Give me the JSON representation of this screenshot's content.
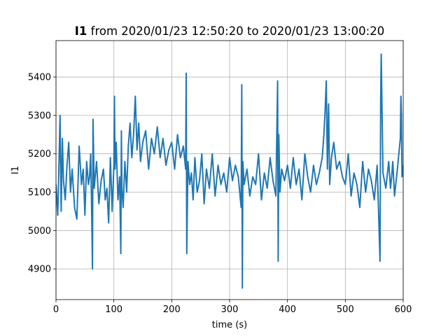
{
  "chart_data": {
    "type": "line",
    "title_bold": "I1",
    "title_rest": " from 2020/01/23 12:50:20 to 2020/01/23 13:00:20",
    "xlabel": "time (s)",
    "ylabel": "I1",
    "xlim": [
      0,
      600
    ],
    "ylim": [
      4820,
      5495
    ],
    "xticks": [
      0,
      100,
      200,
      300,
      400,
      500,
      600
    ],
    "yticks": [
      4900,
      5000,
      5100,
      5200,
      5300,
      5400
    ],
    "grid": true,
    "line_color": "#1f77b4",
    "series": [
      {
        "x": [
          0,
          3,
          5,
          7,
          9,
          11,
          13,
          16,
          19,
          22,
          25,
          28,
          32,
          36,
          40,
          44,
          47,
          50,
          53,
          56,
          58,
          60,
          62,
          63,
          64,
          66,
          70,
          74,
          78,
          82,
          85,
          88,
          91,
          94,
          97,
          100,
          101,
          102,
          104,
          107,
          110,
          112,
          113,
          114,
          116,
          119,
          122,
          125,
          128,
          131,
          134,
          137,
          140,
          143,
          146,
          150,
          155,
          160,
          165,
          170,
          175,
          180,
          185,
          190,
          195,
          200,
          205,
          210,
          215,
          220,
          224,
          225,
          226,
          228,
          231,
          234,
          237,
          240,
          244,
          248,
          252,
          256,
          260,
          265,
          270,
          275,
          280,
          285,
          290,
          295,
          300,
          305,
          310,
          315,
          320,
          321,
          322,
          323,
          325,
          330,
          335,
          340,
          345,
          350,
          355,
          360,
          365,
          370,
          375,
          380,
          383,
          384,
          385,
          387,
          390,
          395,
          400,
          405,
          410,
          415,
          420,
          425,
          430,
          435,
          440,
          445,
          450,
          455,
          460,
          463,
          465,
          467,
          469,
          471,
          473,
          476,
          480,
          485,
          490,
          495,
          500,
          505,
          510,
          515,
          520,
          525,
          530,
          535,
          540,
          545,
          550,
          555,
          560,
          561,
          562,
          565,
          570,
          575,
          578,
          580,
          582,
          585,
          590,
          595,
          596,
          597,
          598,
          600
        ],
        "y": [
          5120,
          5040,
          5160,
          5300,
          5050,
          5240,
          5130,
          5080,
          5170,
          5230,
          5100,
          5160,
          5060,
          5030,
          5220,
          5120,
          5160,
          5040,
          5180,
          5120,
          5140,
          5200,
          5010,
          4900,
          5290,
          5110,
          5180,
          5070,
          5130,
          5160,
          5080,
          5110,
          5020,
          5190,
          5050,
          5170,
          5350,
          5160,
          5230,
          5080,
          5140,
          4940,
          5260,
          5110,
          5060,
          5180,
          5100,
          5220,
          5280,
          5190,
          5250,
          5350,
          5210,
          5280,
          5180,
          5230,
          5260,
          5160,
          5240,
          5200,
          5270,
          5190,
          5240,
          5170,
          5210,
          5230,
          5160,
          5250,
          5190,
          5220,
          5160,
          5410,
          4940,
          5180,
          5120,
          5150,
          5080,
          5190,
          5100,
          5130,
          5200,
          5070,
          5160,
          5110,
          5200,
          5090,
          5170,
          5120,
          5150,
          5100,
          5190,
          5130,
          5170,
          5140,
          5060,
          5380,
          4850,
          5180,
          5120,
          5160,
          5090,
          5140,
          5120,
          5200,
          5080,
          5150,
          5110,
          5190,
          5130,
          5090,
          5390,
          4920,
          5250,
          5100,
          5160,
          5130,
          5170,
          5110,
          5190,
          5120,
          5160,
          5080,
          5200,
          5140,
          5100,
          5170,
          5120,
          5150,
          5190,
          5250,
          5310,
          5390,
          5160,
          5330,
          5120,
          5190,
          5230,
          5160,
          5180,
          5140,
          5120,
          5200,
          5090,
          5150,
          5120,
          5060,
          5180,
          5100,
          5160,
          5130,
          5080,
          5170,
          4920,
          5340,
          5460,
          5150,
          5110,
          5180,
          5110,
          5140,
          5180,
          5090,
          5160,
          5240,
          5350,
          5300,
          5140,
          5170
        ]
      }
    ]
  }
}
